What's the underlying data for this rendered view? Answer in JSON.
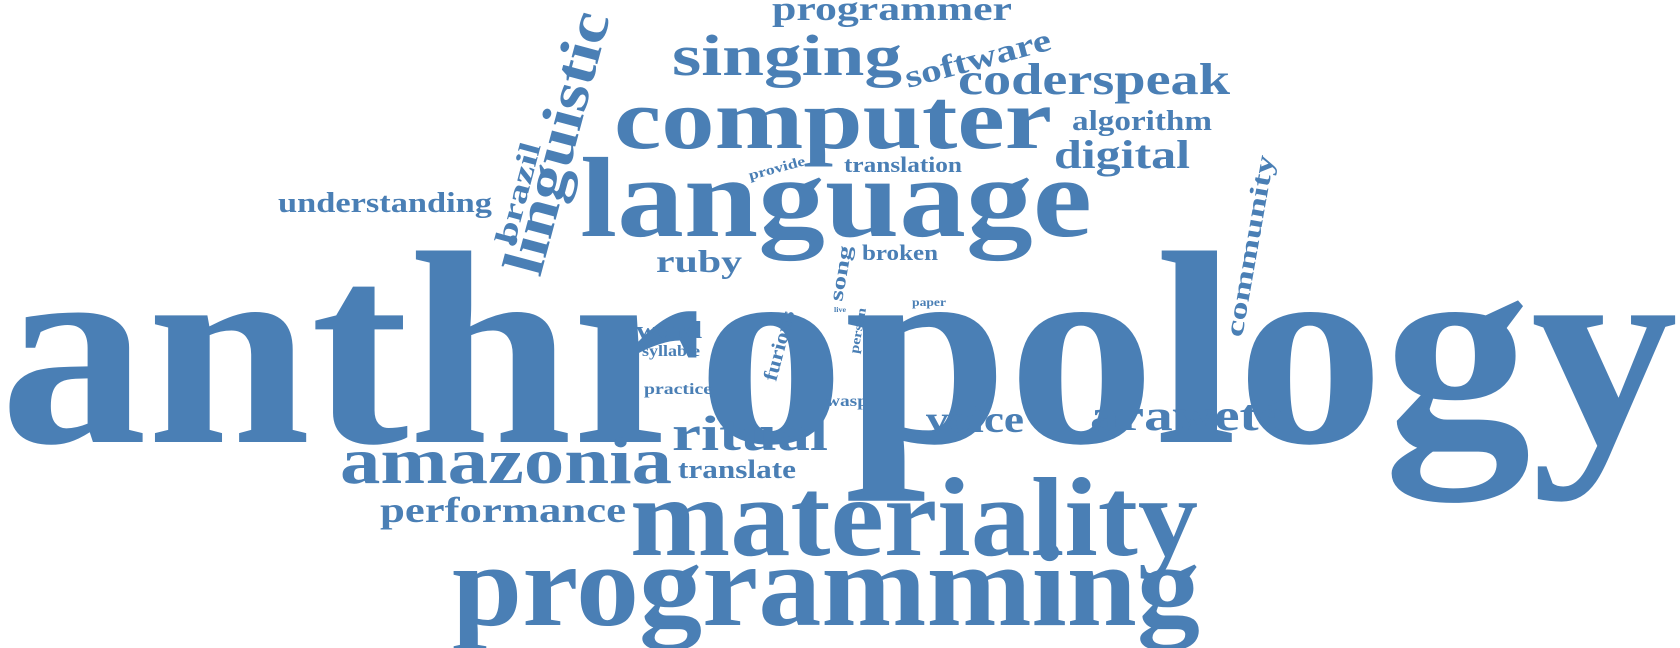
{
  "word_cloud": {
    "color": "#4a7fb5",
    "background": "#ffffff",
    "words": [
      "anthropology",
      "programming",
      "materiality",
      "language",
      "computer",
      "amazonia",
      "singing",
      "linguistic",
      "araweté",
      "ritual",
      "coderspeak",
      "digital",
      "programmer",
      "voice",
      "performance",
      "software",
      "understanding",
      "algorithm",
      "community",
      "translate",
      "ruby",
      "brazil",
      "word",
      "broken",
      "translation",
      "furious",
      "song",
      "syllable",
      "practice",
      "wasp",
      "provide",
      "person",
      "paper",
      "live"
    ]
  }
}
